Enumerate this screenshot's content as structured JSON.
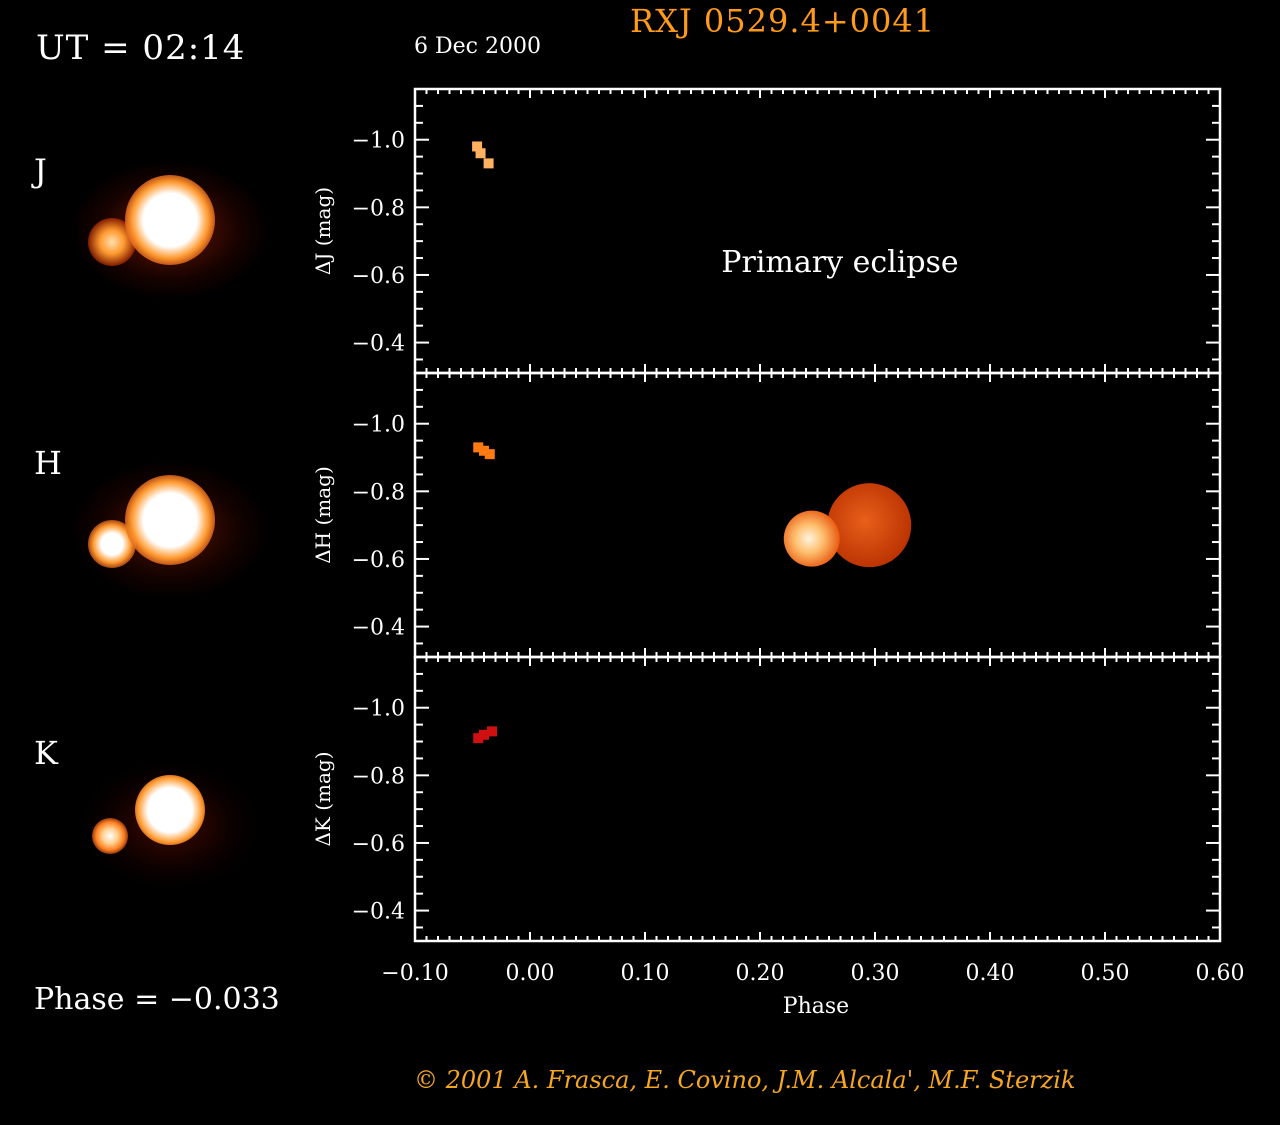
{
  "header": {
    "ut_label": "UT = 02:14",
    "date": "6 Dec 2000",
    "object_title": "RXJ 0529.4+0041",
    "title_color": "#ff9a1a"
  },
  "bands": [
    {
      "label": "J",
      "ylabel": "ΔJ (mag)",
      "color": "#ffb060"
    },
    {
      "label": "H",
      "ylabel": "ΔH (mag)",
      "color": "#ff7a10"
    },
    {
      "label": "K",
      "ylabel": "ΔK (mag)",
      "color": "#d01010"
    }
  ],
  "annotation": "Primary eclipse",
  "phase_readout": "Phase = −0.033",
  "credit": "© 2001 A. Frasca, E. Covino, J.M. Alcala', M.F. Sterzik",
  "chart_data": {
    "type": "scatter",
    "title": "RXJ 0529.4+0041",
    "subtitle": "6 Dec 2000",
    "xlabel": "Phase",
    "xlim": [
      -0.1,
      0.6
    ],
    "x_ticks": [
      -0.1,
      0.0,
      0.1,
      0.2,
      0.3,
      0.4,
      0.5,
      0.6
    ],
    "x_tick_labels": [
      "−0.10",
      "0.00",
      "0.10",
      "0.20",
      "0.30",
      "0.40",
      "0.50",
      "0.60"
    ],
    "ylim": [
      -1.15,
      -0.31
    ],
    "y_ticks": [
      -1.0,
      -0.8,
      -0.6,
      -0.4
    ],
    "y_tick_labels": [
      "−1.0",
      "−0.8",
      "−0.6",
      "−0.4"
    ],
    "grid": false,
    "annotation": {
      "text": "Primary eclipse",
      "x": 0.18,
      "y": -0.7,
      "panel": "J"
    },
    "series": [
      {
        "name": "ΔJ (mag)",
        "x": [
          -0.046,
          -0.043,
          -0.036
        ],
        "y": [
          -0.98,
          -0.96,
          -0.93
        ]
      },
      {
        "name": "ΔH (mag)",
        "x": [
          -0.045,
          -0.04,
          -0.035
        ],
        "y": [
          -0.93,
          -0.92,
          -0.91
        ]
      },
      {
        "name": "ΔK (mag)",
        "x": [
          -0.045,
          -0.04,
          -0.033
        ],
        "y": [
          -0.91,
          -0.92,
          -0.93
        ]
      }
    ],
    "eclipse_model": {
      "panel": "H",
      "small_star": {
        "x": 0.245,
        "y": -0.66,
        "radius_px": 28,
        "color": "#ffd8a0"
      },
      "large_star": {
        "x": 0.295,
        "y": -0.7,
        "radius_px": 42,
        "color": "#e0500a"
      }
    }
  }
}
